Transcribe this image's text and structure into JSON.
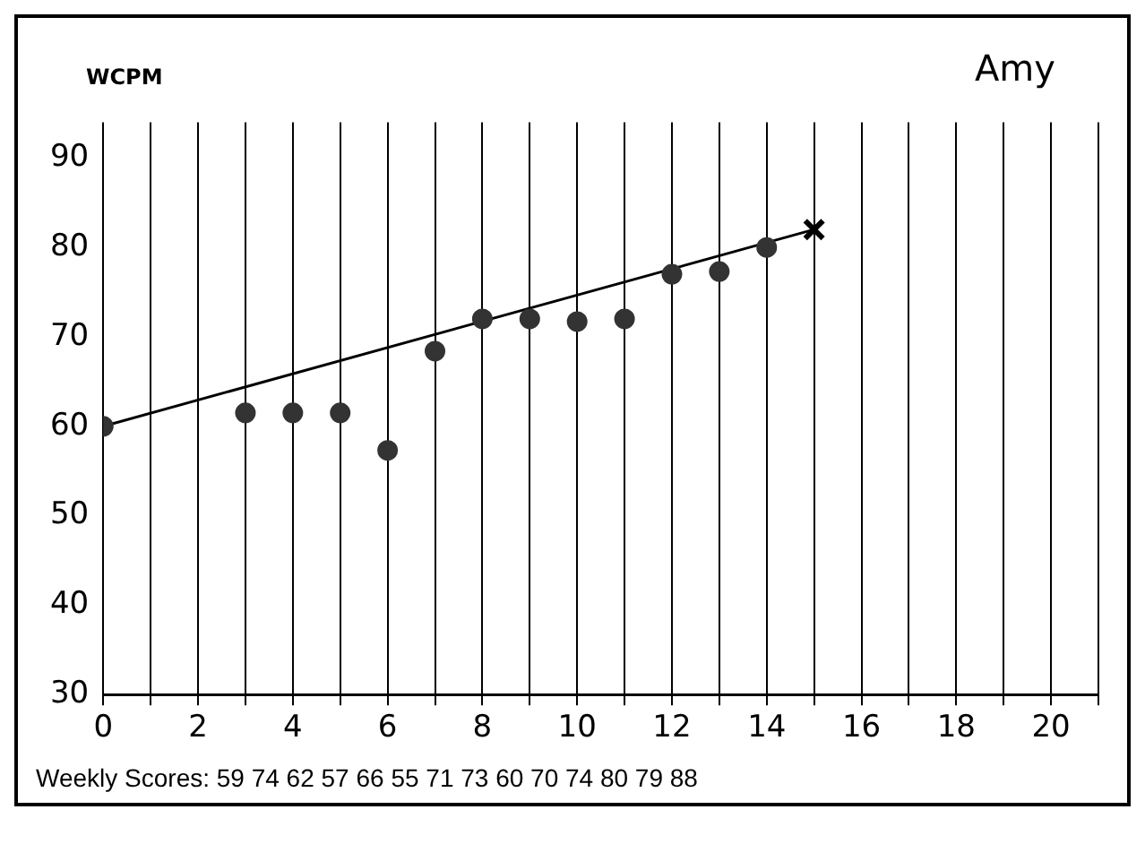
{
  "chart_data": {
    "type": "scatter",
    "title": "Amy",
    "ylabel": "WCPM",
    "annotations": [
      "Weekly Scores: 59 74 62 57 66 55 71 73 60 70 74 80 79 88"
    ],
    "xlim": [
      0,
      21
    ],
    "xticks": [
      0,
      {
        "value": 1,
        "label": null
      },
      2,
      {
        "value": 3,
        "label": null
      },
      4,
      {
        "value": 5,
        "label": null
      },
      6,
      {
        "value": 7,
        "label": null
      },
      8,
      {
        "value": 9,
        "label": null
      },
      10,
      {
        "value": 11,
        "label": null
      },
      12,
      {
        "value": 13,
        "label": null
      },
      14,
      {
        "value": 15,
        "label": null
      },
      16,
      {
        "value": 17,
        "label": null
      },
      18,
      {
        "value": 19,
        "label": null
      },
      20,
      {
        "value": 21,
        "label": null
      }
    ],
    "ylim": [
      30,
      94
    ],
    "yticks": [
      30,
      40,
      50,
      60,
      70,
      80,
      90
    ],
    "grid": "x",
    "series": [
      {
        "type": "scatter",
        "color": "#333333",
        "marker": "circle",
        "x": [
          0,
          3,
          4,
          5,
          6,
          7,
          8,
          9,
          10,
          11,
          12,
          13,
          14
        ],
        "values": [
          60,
          61.5,
          61.5,
          61.5,
          57.3,
          68.4,
          72,
          72,
          71.7,
          72,
          77,
          77.3,
          80
        ]
      },
      {
        "type": "line",
        "color": "#000000",
        "marker": "none",
        "x": [
          0,
          15
        ],
        "values": [
          60,
          82
        ]
      },
      {
        "type": "scatter",
        "color": "#000000",
        "marker": "cross",
        "x": [
          15
        ],
        "values": [
          82
        ]
      }
    ]
  }
}
